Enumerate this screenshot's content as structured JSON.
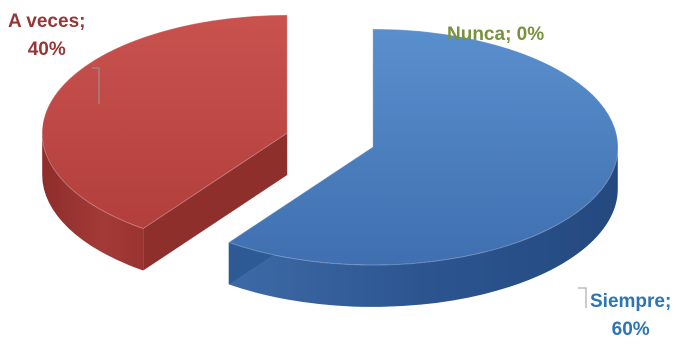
{
  "chart_data": {
    "type": "pie",
    "title": "",
    "categories": [
      "Siempre",
      "A veces",
      "Nunca"
    ],
    "values": [
      60,
      40,
      0
    ],
    "unit": "%",
    "colors": [
      "#4f81bd",
      "#c0504d",
      "#9bbb59"
    ],
    "legend": "none",
    "data_labels": [
      {
        "category": "Siempre",
        "line1": "Siempre;",
        "line2": "60%"
      },
      {
        "category": "A veces",
        "line1": "A veces;",
        "line2": "40%"
      },
      {
        "category": "Nunca",
        "line1": "Nunca; 0%",
        "line2": ""
      }
    ]
  }
}
